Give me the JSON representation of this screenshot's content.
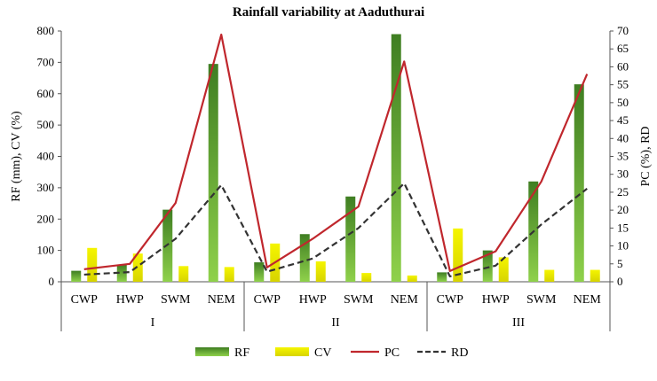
{
  "chart_data": {
    "type": "bar+line",
    "title": "Rainfall variability  at Aaduthurai",
    "y_left_label": "RF (mm), CV (%)",
    "y_right_label": "PC (%), RD",
    "y_left_range": [
      0,
      800
    ],
    "y_left_ticks": [
      "0",
      "100",
      "200",
      "300",
      "400",
      "500",
      "600",
      "700",
      "800"
    ],
    "y_right_range": [
      0,
      70
    ],
    "y_right_ticks": [
      "0",
      "5",
      "10",
      "15",
      "20",
      "25",
      "30",
      "35",
      "40",
      "45",
      "50",
      "55",
      "60",
      "65",
      "70"
    ],
    "categories": [
      "CWP",
      "HWP",
      "SWM",
      "NEM",
      "CWP",
      "HWP",
      "SWM",
      "NEM",
      "CWP",
      "HWP",
      "SWM",
      "NEM"
    ],
    "groups": [
      "I",
      "II",
      "III"
    ],
    "series": [
      {
        "name": "RF",
        "type": "bar",
        "axis": "left",
        "color": "#5a9e2c",
        "values": [
          35,
          55,
          230,
          695,
          62,
          152,
          272,
          790,
          30,
          100,
          320,
          630
        ]
      },
      {
        "name": "CV",
        "type": "bar",
        "axis": "left",
        "color": "#e6e600",
        "values": [
          108,
          90,
          50,
          47,
          122,
          65,
          28,
          20,
          170,
          78,
          38,
          38
        ]
      },
      {
        "name": "PC",
        "type": "line",
        "axis": "right",
        "color": "#c0272d",
        "dash": false,
        "values": [
          3.5,
          5.0,
          22.0,
          69.0,
          4.0,
          12.0,
          21.0,
          61.5,
          3.0,
          8.5,
          28.0,
          58.0
        ]
      },
      {
        "name": "RD",
        "type": "line",
        "axis": "right",
        "color": "#333333",
        "dash": true,
        "values": [
          2.0,
          2.7,
          12.0,
          27.0,
          2.8,
          6.5,
          15.0,
          27.5,
          1.5,
          4.5,
          16.0,
          26.0
        ]
      }
    ],
    "legend_position": "bottom",
    "grid": false
  }
}
